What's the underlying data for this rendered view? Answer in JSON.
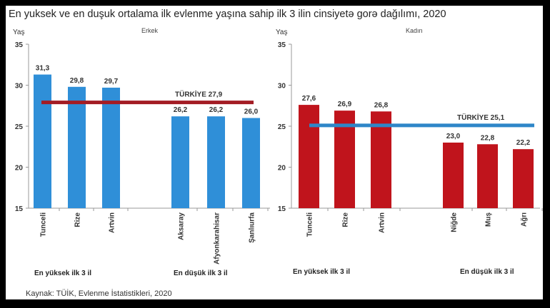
{
  "title": "En yuksek ve en duşuk ortalama ilk evlenme yaşına sahip ilk 3 ilin cinsiyetə gorə dağılımı, 2020",
  "source": "Kaynak: TÜİK, Evlenme İstatistikleri, 2020",
  "chart_data": [
    {
      "type": "bar",
      "title": "Erkek",
      "ylabel": "Yaş",
      "ylim": [
        15,
        35
      ],
      "yticks": [
        15,
        20,
        25,
        30,
        35
      ],
      "categories": [
        "Tunceli",
        "Rize",
        "Artvin",
        "Aksaray",
        "Afyonkarahisar",
        "Şanlıurfa"
      ],
      "value_labels": [
        "31,3",
        "29,8",
        "29,7",
        "26,2",
        "26,2",
        "26,0"
      ],
      "values": [
        31.3,
        29.8,
        29.7,
        26.2,
        26.2,
        26.0
      ],
      "group_labels": [
        "En yüksek ilk 3 il",
        "En düşük ilk 3 il"
      ],
      "reference_line": {
        "label": "TÜRKİYE  27,9",
        "value": 27.9,
        "color": "#a31c24"
      },
      "bar_color": "#2f8fd8"
    },
    {
      "type": "bar",
      "title": "Kadın",
      "ylabel": "Yaş",
      "ylim": [
        15,
        35
      ],
      "yticks": [
        15,
        20,
        25,
        30,
        35
      ],
      "categories": [
        "Tunceli",
        "Rize",
        "Artvin",
        "Niğde",
        "Muş",
        "Ağrı"
      ],
      "value_labels": [
        "27,6",
        "26,9",
        "26,8",
        "23,0",
        "22,8",
        "22,2"
      ],
      "values": [
        27.6,
        26.9,
        26.8,
        23.0,
        22.8,
        22.2
      ],
      "group_labels": [
        "En yüksek ilk 3 il",
        "En düşük ilk 3 il"
      ],
      "reference_line": {
        "label": "TÜRKİYE  25,1",
        "value": 25.1,
        "color": "#2e86c8"
      },
      "bar_color": "#c0141c"
    }
  ]
}
